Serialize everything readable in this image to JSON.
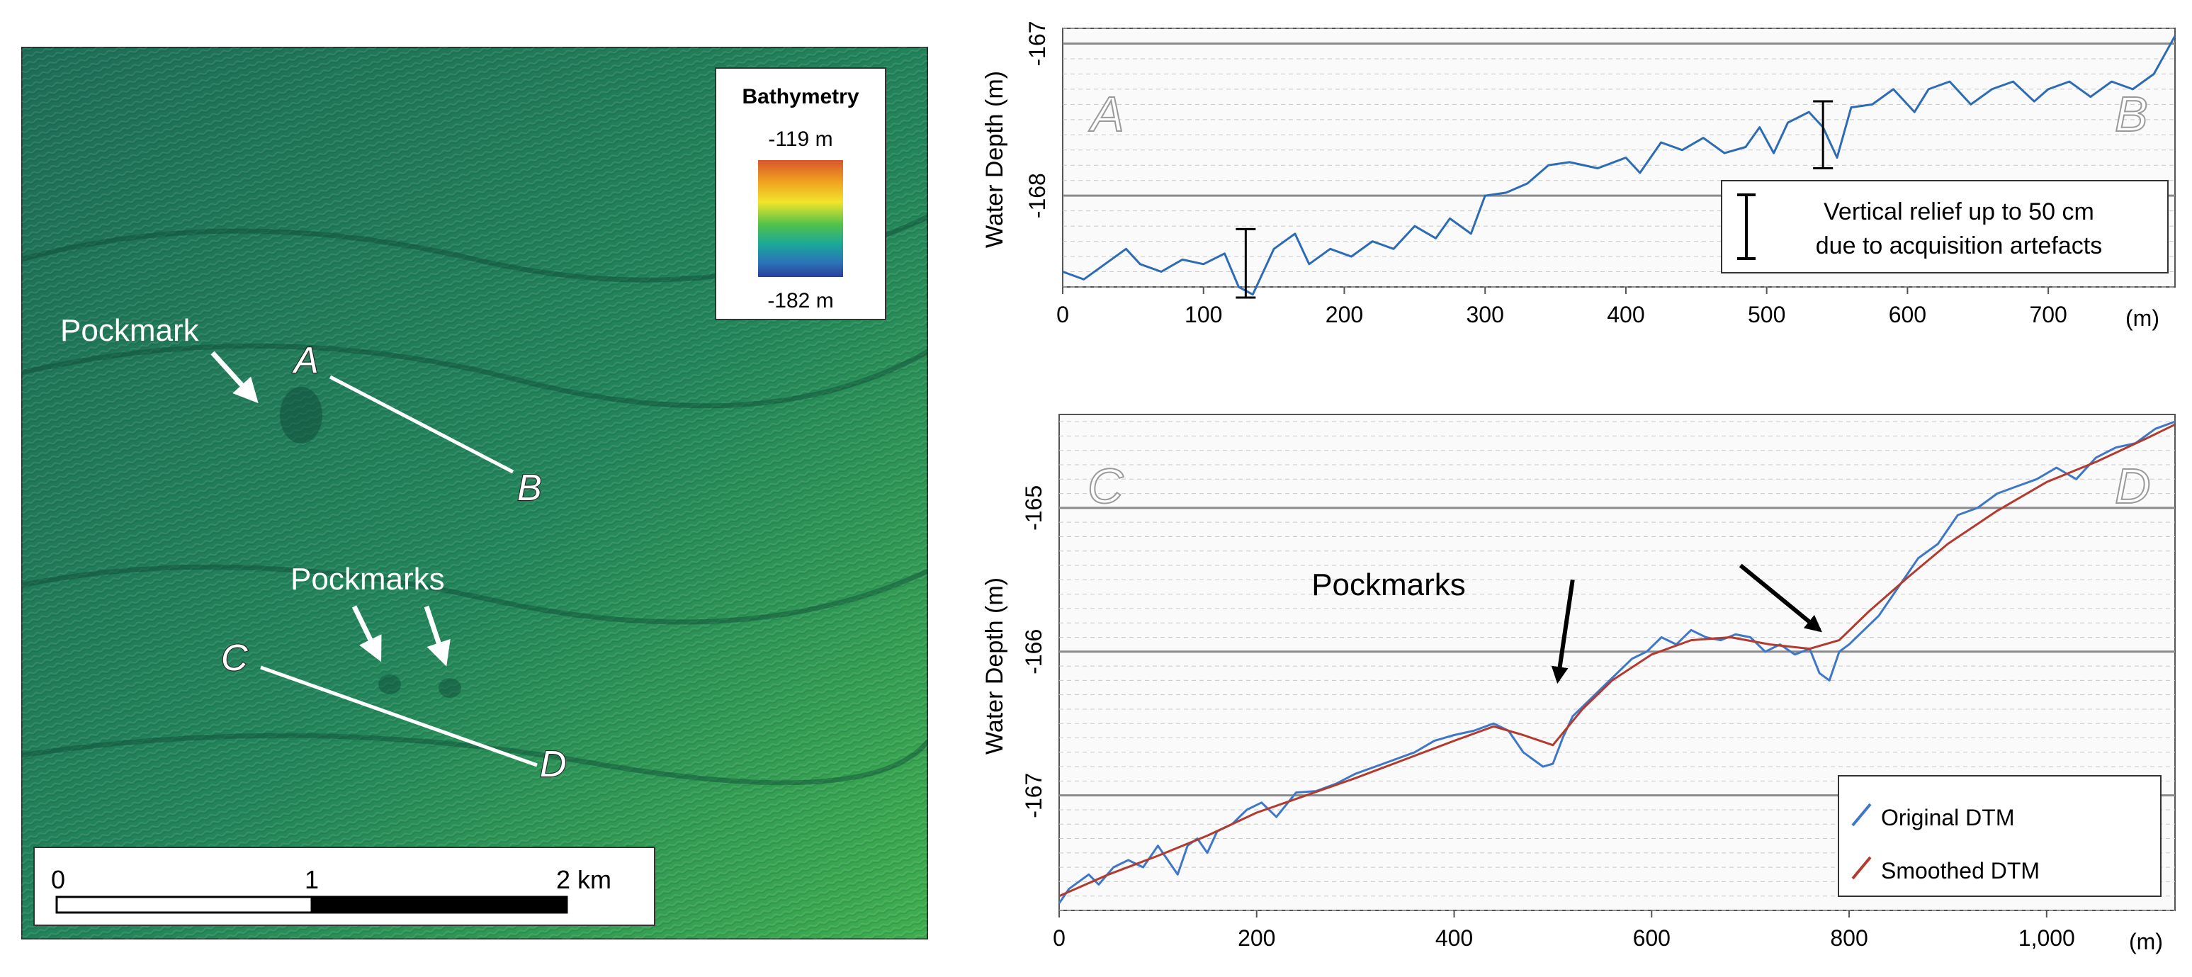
{
  "map": {
    "legend_title": "Bathymetry",
    "legend_max": "-119 m",
    "legend_min": "-182 m",
    "legend_colors": [
      "#d8552c",
      "#f0a020",
      "#f2e52a",
      "#52c24a",
      "#1aa89a",
      "#2b73b8",
      "#2a3f9a"
    ],
    "labels": {
      "pockmark": "Pockmark",
      "pockmarks": "Pockmarks",
      "A": "A",
      "B": "B",
      "C": "C",
      "D": "D"
    },
    "scale_bar": {
      "ticks": [
        "0",
        "1",
        "2 km"
      ]
    },
    "colors": {
      "seafloor_dark": "#1f7a58",
      "seafloor_light": "#3fae55"
    }
  },
  "chart_data": [
    {
      "type": "line",
      "id": "profile-AB",
      "ylabel": "Water Depth (m)",
      "xlabel": "(m)",
      "xlim": [
        0,
        790
      ],
      "ylim": [
        -168.6,
        -166.9
      ],
      "xticks": [
        0,
        100,
        200,
        300,
        400,
        500,
        600,
        700
      ],
      "xtick_labels": [
        "0",
        "100",
        "200",
        "300",
        "400",
        "500",
        "600",
        "700"
      ],
      "yticks": [
        -167,
        -168
      ],
      "ytick_labels": [
        "-167",
        "-168"
      ],
      "start_label": "A",
      "end_label": "B",
      "annotation": "Vertical relief up to 50 cm\ndue to acquisition artefacts",
      "relief_markers": [
        {
          "x": 130,
          "y_top": -168.22,
          "y_bottom": -168.67
        },
        {
          "x": 540,
          "y_top": -167.38,
          "y_bottom": -167.82
        }
      ],
      "series": [
        {
          "name": "Profile A–B",
          "color": "#2d6bb5",
          "x": [
            0,
            15,
            30,
            45,
            55,
            70,
            85,
            100,
            115,
            125,
            135,
            150,
            165,
            175,
            190,
            205,
            220,
            235,
            250,
            265,
            275,
            290,
            300,
            315,
            330,
            345,
            360,
            380,
            400,
            410,
            425,
            440,
            455,
            470,
            485,
            495,
            505,
            515,
            530,
            540,
            550,
            560,
            575,
            590,
            605,
            615,
            630,
            645,
            660,
            675,
            690,
            700,
            715,
            730,
            745,
            760,
            775,
            790
          ],
          "y": [
            -168.5,
            -168.55,
            -168.45,
            -168.35,
            -168.45,
            -168.5,
            -168.42,
            -168.45,
            -168.38,
            -168.6,
            -168.65,
            -168.35,
            -168.25,
            -168.45,
            -168.35,
            -168.4,
            -168.3,
            -168.35,
            -168.2,
            -168.28,
            -168.15,
            -168.25,
            -168.0,
            -167.98,
            -167.92,
            -167.8,
            -167.78,
            -167.82,
            -167.75,
            -167.85,
            -167.65,
            -167.7,
            -167.62,
            -167.72,
            -167.68,
            -167.55,
            -167.72,
            -167.52,
            -167.45,
            -167.55,
            -167.75,
            -167.42,
            -167.4,
            -167.3,
            -167.45,
            -167.3,
            -167.25,
            -167.4,
            -167.3,
            -167.25,
            -167.38,
            -167.3,
            -167.25,
            -167.35,
            -167.25,
            -167.3,
            -167.2,
            -166.95
          ]
        }
      ]
    },
    {
      "type": "line",
      "id": "profile-CD",
      "ylabel": "Water Depth (m)",
      "xlabel": "(m)",
      "xlim": [
        0,
        1130
      ],
      "ylim": [
        -167.8,
        -164.35
      ],
      "xticks": [
        0,
        200,
        400,
        600,
        800,
        1000
      ],
      "xtick_labels": [
        "0",
        "200",
        "400",
        "600",
        "800",
        "1,000"
      ],
      "yticks": [
        -165,
        -166,
        -167
      ],
      "ytick_labels": [
        "-165",
        "-166",
        "-167"
      ],
      "start_label": "C",
      "end_label": "D",
      "annotation": "Pockmarks",
      "pockmark_arrows": [
        {
          "from_x": 520,
          "from_y": -165.5,
          "to_x": 505,
          "to_y": -166.2
        },
        {
          "from_x": 690,
          "from_y": -165.4,
          "to_x": 770,
          "to_y": -165.85
        }
      ],
      "legend": [
        "Original DTM",
        "Smoothed DTM"
      ],
      "series": [
        {
          "name": "Original DTM",
          "color": "#3f77c8",
          "x": [
            0,
            10,
            20,
            30,
            40,
            55,
            70,
            85,
            100,
            110,
            120,
            130,
            140,
            150,
            160,
            175,
            190,
            205,
            220,
            240,
            260,
            280,
            300,
            320,
            340,
            360,
            380,
            400,
            420,
            440,
            455,
            470,
            480,
            490,
            500,
            510,
            520,
            535,
            550,
            565,
            580,
            595,
            610,
            625,
            640,
            655,
            670,
            685,
            700,
            715,
            730,
            745,
            760,
            770,
            780,
            790,
            800,
            815,
            830,
            850,
            870,
            890,
            910,
            930,
            950,
            970,
            990,
            1010,
            1030,
            1050,
            1070,
            1090,
            1110,
            1130
          ],
          "y": [
            -167.75,
            -167.65,
            -167.6,
            -167.55,
            -167.62,
            -167.5,
            -167.45,
            -167.5,
            -167.35,
            -167.45,
            -167.55,
            -167.35,
            -167.3,
            -167.4,
            -167.25,
            -167.2,
            -167.1,
            -167.05,
            -167.15,
            -166.98,
            -166.97,
            -166.92,
            -166.85,
            -166.8,
            -166.75,
            -166.7,
            -166.62,
            -166.58,
            -166.55,
            -166.5,
            -166.55,
            -166.7,
            -166.75,
            -166.8,
            -166.78,
            -166.6,
            -166.45,
            -166.35,
            -166.25,
            -166.15,
            -166.05,
            -166.0,
            -165.9,
            -165.95,
            -165.85,
            -165.9,
            -165.92,
            -165.88,
            -165.9,
            -166.0,
            -165.95,
            -166.02,
            -165.98,
            -166.15,
            -166.2,
            -166.0,
            -165.95,
            -165.85,
            -165.75,
            -165.55,
            -165.35,
            -165.25,
            -165.05,
            -165.0,
            -164.9,
            -164.85,
            -164.8,
            -164.72,
            -164.8,
            -164.65,
            -164.58,
            -164.55,
            -164.45,
            -164.4
          ]
        },
        {
          "name": "Smoothed DTM",
          "color": "#b23a2e",
          "x": [
            0,
            50,
            100,
            150,
            200,
            250,
            300,
            350,
            400,
            440,
            470,
            500,
            530,
            560,
            600,
            640,
            680,
            720,
            760,
            790,
            820,
            860,
            900,
            950,
            1000,
            1050,
            1100,
            1130
          ],
          "y": [
            -167.7,
            -167.55,
            -167.42,
            -167.28,
            -167.12,
            -167.0,
            -166.88,
            -166.75,
            -166.62,
            -166.52,
            -166.58,
            -166.65,
            -166.4,
            -166.2,
            -166.02,
            -165.92,
            -165.9,
            -165.95,
            -165.98,
            -165.92,
            -165.72,
            -165.48,
            -165.25,
            -165.02,
            -164.82,
            -164.68,
            -164.52,
            -164.42
          ]
        }
      ]
    }
  ]
}
